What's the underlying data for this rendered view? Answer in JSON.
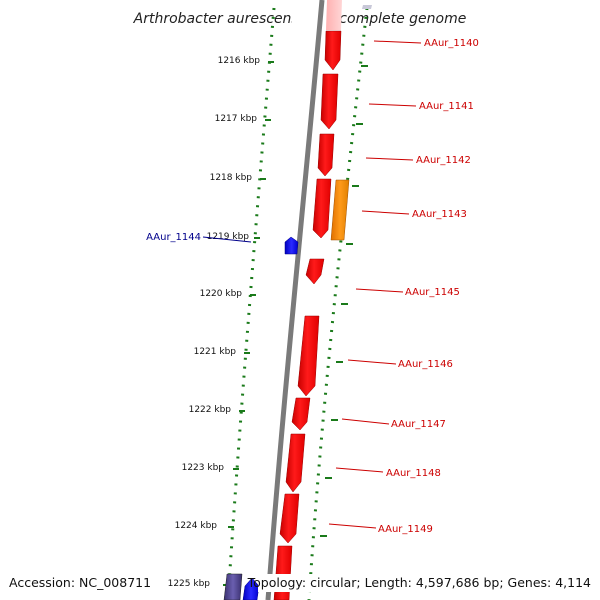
{
  "title": "Arthrobacter aurescens TC1, complete genome",
  "footer": {
    "accession": "Accession: NC_008711",
    "summary": "Topology: circular; Length: 4,597,686 bp; Genes: 4,114"
  },
  "colors": {
    "forward_gene": "#ff0000",
    "reverse_gene": "#0000ff",
    "orange_gene": "#ff8c00",
    "dark_gene": "#4a3f8c",
    "backbone": "#7a7a7a",
    "tick": "#1a7a1a",
    "forward_label": "#cc0000",
    "reverse_label": "#00008b"
  },
  "kbp_labels": [
    "1216 kbp",
    "1217 kbp",
    "1218 kbp",
    "1219 kbp",
    "1220 kbp",
    "1221 kbp",
    "1222 kbp",
    "1223 kbp",
    "1224 kbp",
    "1225 kbp"
  ],
  "forward_genes": [
    "AAur_1140",
    "AAur_1141",
    "AAur_1142",
    "AAur_1143",
    "AAur_1145",
    "AAur_1146",
    "AAur_1147",
    "AAur_1148",
    "AAur_1149"
  ],
  "reverse_genes": [
    "AAur_1144"
  ]
}
